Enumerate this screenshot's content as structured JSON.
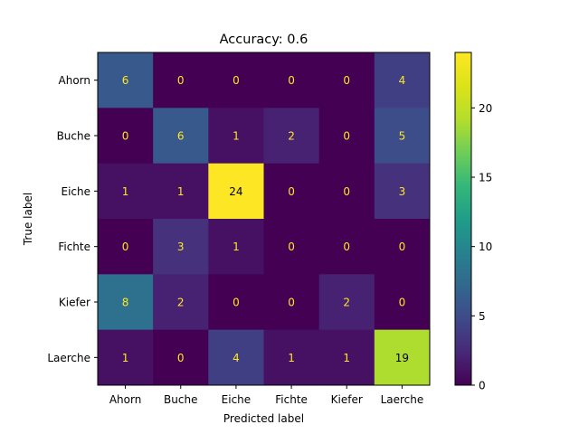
{
  "chart_data": {
    "type": "heatmap",
    "title": "Accuracy: 0.6",
    "xlabel": "Predicted label",
    "ylabel": "True label",
    "x_categories": [
      "Ahorn",
      "Buche",
      "Eiche",
      "Fichte",
      "Kiefer",
      "Laerche"
    ],
    "y_categories": [
      "Ahorn",
      "Buche",
      "Eiche",
      "Fichte",
      "Kiefer",
      "Laerche"
    ],
    "values": [
      [
        6,
        0,
        0,
        0,
        0,
        4
      ],
      [
        0,
        6,
        1,
        2,
        0,
        5
      ],
      [
        1,
        1,
        24,
        0,
        0,
        3
      ],
      [
        0,
        3,
        1,
        0,
        0,
        0
      ],
      [
        8,
        2,
        0,
        0,
        2,
        0
      ],
      [
        1,
        0,
        4,
        1,
        1,
        19
      ]
    ],
    "colormap": "viridis",
    "vmin": 0,
    "vmax": 24,
    "colorbar_ticks": [
      0,
      5,
      10,
      15,
      20
    ],
    "text_color_dark_cells": "#fde725",
    "text_color_bright_cells": "#000000"
  }
}
